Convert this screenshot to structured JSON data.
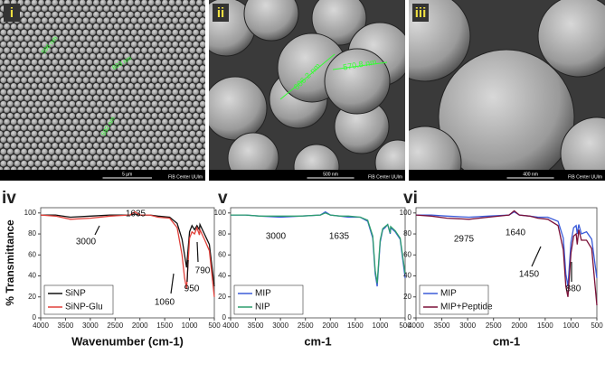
{
  "sem_panels": [
    {
      "label": "i",
      "scale_bar": "5 µm",
      "measurements": [
        "596 nm",
        "603 nm",
        "592 nm"
      ],
      "footer": "FIB Center UUlm"
    },
    {
      "label": "ii",
      "scale_bar": "500 nm",
      "measurements": [
        "606.2 nm",
        "570.8 nm"
      ],
      "footer": "FIB Center UUlm"
    },
    {
      "label": "iii",
      "scale_bar": "400 nm",
      "measurements": [],
      "footer": "FIB Center UUlm"
    }
  ],
  "chart_data": [
    {
      "type": "line",
      "panel": "iv",
      "ylabel": "% Transmittance",
      "xlabel": "Wavenumber (cm-1)",
      "x": [
        4000,
        3700,
        3400,
        3000,
        2600,
        2200,
        2100,
        2000,
        1800,
        1635,
        1400,
        1250,
        1150,
        1100,
        1060,
        1000,
        950,
        900,
        850,
        800,
        790,
        700,
        600,
        500
      ],
      "xlim": [
        4000,
        500
      ],
      "xticks": [
        4000,
        3500,
        3000,
        2500,
        2000,
        1500,
        1000,
        500
      ],
      "ylim": [
        0,
        105
      ],
      "yticks": [
        0,
        20,
        40,
        60,
        80,
        100
      ],
      "legend": "lower left",
      "series": [
        {
          "name": "SiNP",
          "color": "#111111",
          "values": [
            98,
            98,
            96,
            97,
            98,
            98,
            99,
            98,
            98,
            97,
            96,
            90,
            75,
            60,
            48,
            82,
            88,
            84,
            88,
            84,
            89,
            80,
            70,
            30
          ]
        },
        {
          "name": "SiNP-Glu",
          "color": "#e0403a",
          "values": [
            98,
            97,
            94,
            95,
            97,
            98,
            101,
            98,
            98,
            96,
            95,
            86,
            60,
            38,
            28,
            76,
            82,
            80,
            86,
            79,
            84,
            75,
            64,
            20
          ]
        }
      ],
      "annotations": [
        "3000",
        "1635",
        "1060",
        "950",
        "790"
      ]
    },
    {
      "type": "line",
      "panel": "v",
      "xlabel": "cm-1",
      "x": [
        4000,
        3700,
        3400,
        3000,
        2600,
        2200,
        2100,
        2000,
        1800,
        1635,
        1400,
        1250,
        1150,
        1100,
        1060,
        1000,
        950,
        900,
        850,
        800,
        790,
        700,
        600,
        500
      ],
      "xlim": [
        4000,
        500
      ],
      "xticks": [
        4000,
        3500,
        3000,
        2500,
        2000,
        1500,
        1000,
        500
      ],
      "ylim": [
        0,
        105
      ],
      "yticks": [
        0,
        20,
        40,
        60,
        80,
        100
      ],
      "legend": "lower left",
      "series": [
        {
          "name": "MIP",
          "color": "#3a5bd9",
          "values": [
            98,
            98,
            97,
            96,
            97,
            98,
            101,
            98,
            97,
            96,
            96,
            92,
            76,
            42,
            30,
            72,
            84,
            86,
            89,
            80,
            86,
            82,
            75,
            38
          ]
        },
        {
          "name": "NIP",
          "color": "#2e9e6e",
          "values": [
            98,
            98,
            97,
            97,
            97,
            98,
            100,
            98,
            97,
            97,
            96,
            93,
            78,
            45,
            33,
            74,
            85,
            87,
            89,
            81,
            87,
            83,
            76,
            42
          ]
        }
      ],
      "annotations": [
        "3000",
        "1635"
      ]
    },
    {
      "type": "line",
      "panel": "vi",
      "xlabel": "cm-1",
      "x": [
        4000,
        3700,
        3400,
        2975,
        2600,
        2200,
        2100,
        2000,
        1800,
        1640,
        1450,
        1250,
        1150,
        1100,
        1060,
        1000,
        950,
        900,
        880,
        850,
        800,
        700,
        600,
        500
      ],
      "xlim": [
        4000,
        500
      ],
      "xticks": [
        4000,
        3500,
        3000,
        2500,
        2000,
        1500,
        1000,
        500
      ],
      "ylim": [
        0,
        105
      ],
      "yticks": [
        0,
        20,
        40,
        60,
        80,
        100
      ],
      "legend": "lower left",
      "series": [
        {
          "name": "MIP",
          "color": "#3a5bd9",
          "values": [
            98,
            98,
            97,
            96,
            97,
            98,
            101,
            98,
            97,
            96,
            96,
            92,
            76,
            42,
            30,
            72,
            86,
            88,
            80,
            89,
            80,
            82,
            75,
            38
          ]
        },
        {
          "name": "MIP+Peptide",
          "color": "#7a1038",
          "values": [
            98,
            97,
            95,
            94,
            96,
            98,
            102,
            98,
            97,
            95,
            94,
            88,
            65,
            30,
            20,
            62,
            78,
            80,
            70,
            84,
            74,
            74,
            66,
            12
          ]
        }
      ],
      "annotations": [
        "2975",
        "1640",
        "1450",
        "880"
      ]
    }
  ]
}
